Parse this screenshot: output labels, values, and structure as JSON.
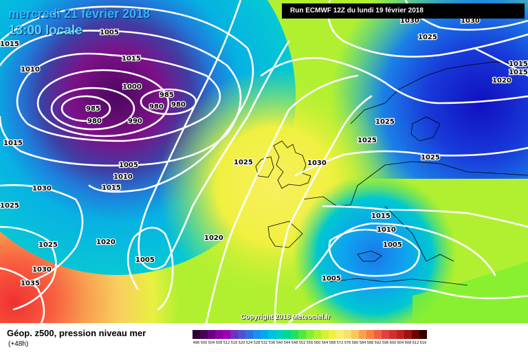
{
  "header": {
    "date": "mercredi 21 février 2018",
    "time": "13:00 locale",
    "run": "Run ECMWF 12Z du lundi 19 février 2018"
  },
  "copyright": "Copyright 2018 Meteociel.fr",
  "footer": {
    "title": "Géop. z500, pression niveau mer",
    "subtitle": "(+48h)"
  },
  "scale": {
    "labels": [
      "496",
      "500",
      "504",
      "508",
      "512",
      "516",
      "520",
      "524",
      "528",
      "532",
      "536",
      "540",
      "544",
      "548",
      "552",
      "556",
      "560",
      "564",
      "568",
      "572",
      "576",
      "580",
      "584",
      "588",
      "592",
      "596",
      "600",
      "604",
      "608",
      "612",
      "616"
    ],
    "colors": [
      "#2a0030",
      "#4b005a",
      "#6a0080",
      "#8a00a0",
      "#a000b0",
      "#7030c0",
      "#5050d0",
      "#3070e0",
      "#1890f0",
      "#00a8f0",
      "#00c0e0",
      "#00d0c0",
      "#00d890",
      "#20e060",
      "#50e840",
      "#80f030",
      "#b0f030",
      "#d8f030",
      "#f0f040",
      "#f8f070",
      "#f8e070",
      "#f8c860",
      "#f8a050",
      "#f88040",
      "#f06040",
      "#e04040",
      "#d03030",
      "#c02020",
      "#a01010",
      "#700000",
      "#300000"
    ]
  },
  "pressure_labels": [
    "1015",
    "1005",
    "1010",
    "1015",
    "1000",
    "985",
    "985",
    "980",
    "980",
    "980",
    "990",
    "1015",
    "1005",
    "1010",
    "1015",
    "1030",
    "1025",
    "1025",
    "1020",
    "1030",
    "1020",
    "1005",
    "1035",
    "1030",
    "1025",
    "1030",
    "1025",
    "1015",
    "1015",
    "1020",
    "1025",
    "1025",
    "1025",
    "1015",
    "1010",
    "1005",
    "1005"
  ],
  "colors": {
    "accent": "#33b5ff",
    "run_bg": "#000000"
  }
}
